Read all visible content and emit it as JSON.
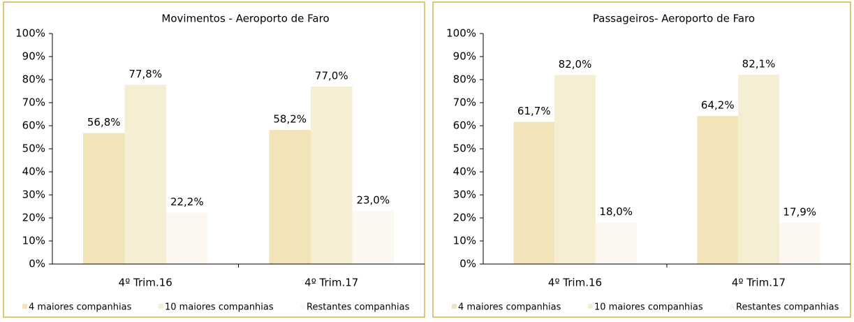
{
  "chart_data": [
    {
      "type": "bar",
      "title": "Movimentos - Aeroporto de Faro",
      "categories": [
        "4º Trim.16",
        "4º Trim.17"
      ],
      "series": [
        {
          "name": "4 maiores companhias",
          "color": "#f0e4b8",
          "values": [
            56.8,
            58.2
          ],
          "value_labels": [
            "56,8%",
            "58,2%"
          ]
        },
        {
          "name": "10 maiores companhias",
          "color": "#f6eed3",
          "values": [
            77.8,
            77.0
          ],
          "value_labels": [
            "77,8%",
            "77,0%"
          ]
        },
        {
          "name": "Restantes companhias",
          "color": "#fcf8ef",
          "values": [
            22.2,
            23.0
          ],
          "value_labels": [
            "22,2%",
            "23,0%"
          ]
        }
      ],
      "ylim": [
        0,
        100
      ],
      "yticks": [
        {
          "value": 0,
          "label": "0%"
        },
        {
          "value": 10,
          "label": "10%"
        },
        {
          "value": 20,
          "label": "20%"
        },
        {
          "value": 30,
          "label": "30%"
        },
        {
          "value": 40,
          "label": "40%"
        },
        {
          "value": 50,
          "label": "50%"
        },
        {
          "value": 60,
          "label": "60%"
        },
        {
          "value": 70,
          "label": "70%"
        },
        {
          "value": 80,
          "label": "80%"
        },
        {
          "value": 90,
          "label": "90%"
        },
        {
          "value": 100,
          "label": "100%"
        }
      ],
      "legend": "bottom"
    },
    {
      "type": "bar",
      "title": "Passageiros- Aeroporto de Faro",
      "categories": [
        "4º Trim.16",
        "4º Trim.17"
      ],
      "series": [
        {
          "name": "4 maiores companhias",
          "color": "#f0e4b8",
          "values": [
            61.7,
            64.2
          ],
          "value_labels": [
            "61,7%",
            "64,2%"
          ]
        },
        {
          "name": "10 maiores companhias",
          "color": "#f6eed3",
          "values": [
            82.0,
            82.1
          ],
          "value_labels": [
            "82,0%",
            "82,1%"
          ]
        },
        {
          "name": "Restantes companhias",
          "color": "#fcf8ef",
          "values": [
            18.0,
            17.9
          ],
          "value_labels": [
            "18,0%",
            "17,9%"
          ]
        }
      ],
      "ylim": [
        0,
        100
      ],
      "yticks": [
        {
          "value": 0,
          "label": "0%"
        },
        {
          "value": 10,
          "label": "10%"
        },
        {
          "value": 20,
          "label": "20%"
        },
        {
          "value": 30,
          "label": "30%"
        },
        {
          "value": 40,
          "label": "40%"
        },
        {
          "value": 50,
          "label": "50%"
        },
        {
          "value": 60,
          "label": "60%"
        },
        {
          "value": 70,
          "label": "70%"
        },
        {
          "value": 80,
          "label": "80%"
        },
        {
          "value": 90,
          "label": "90%"
        },
        {
          "value": 100,
          "label": "100%"
        }
      ],
      "legend": "bottom"
    }
  ]
}
